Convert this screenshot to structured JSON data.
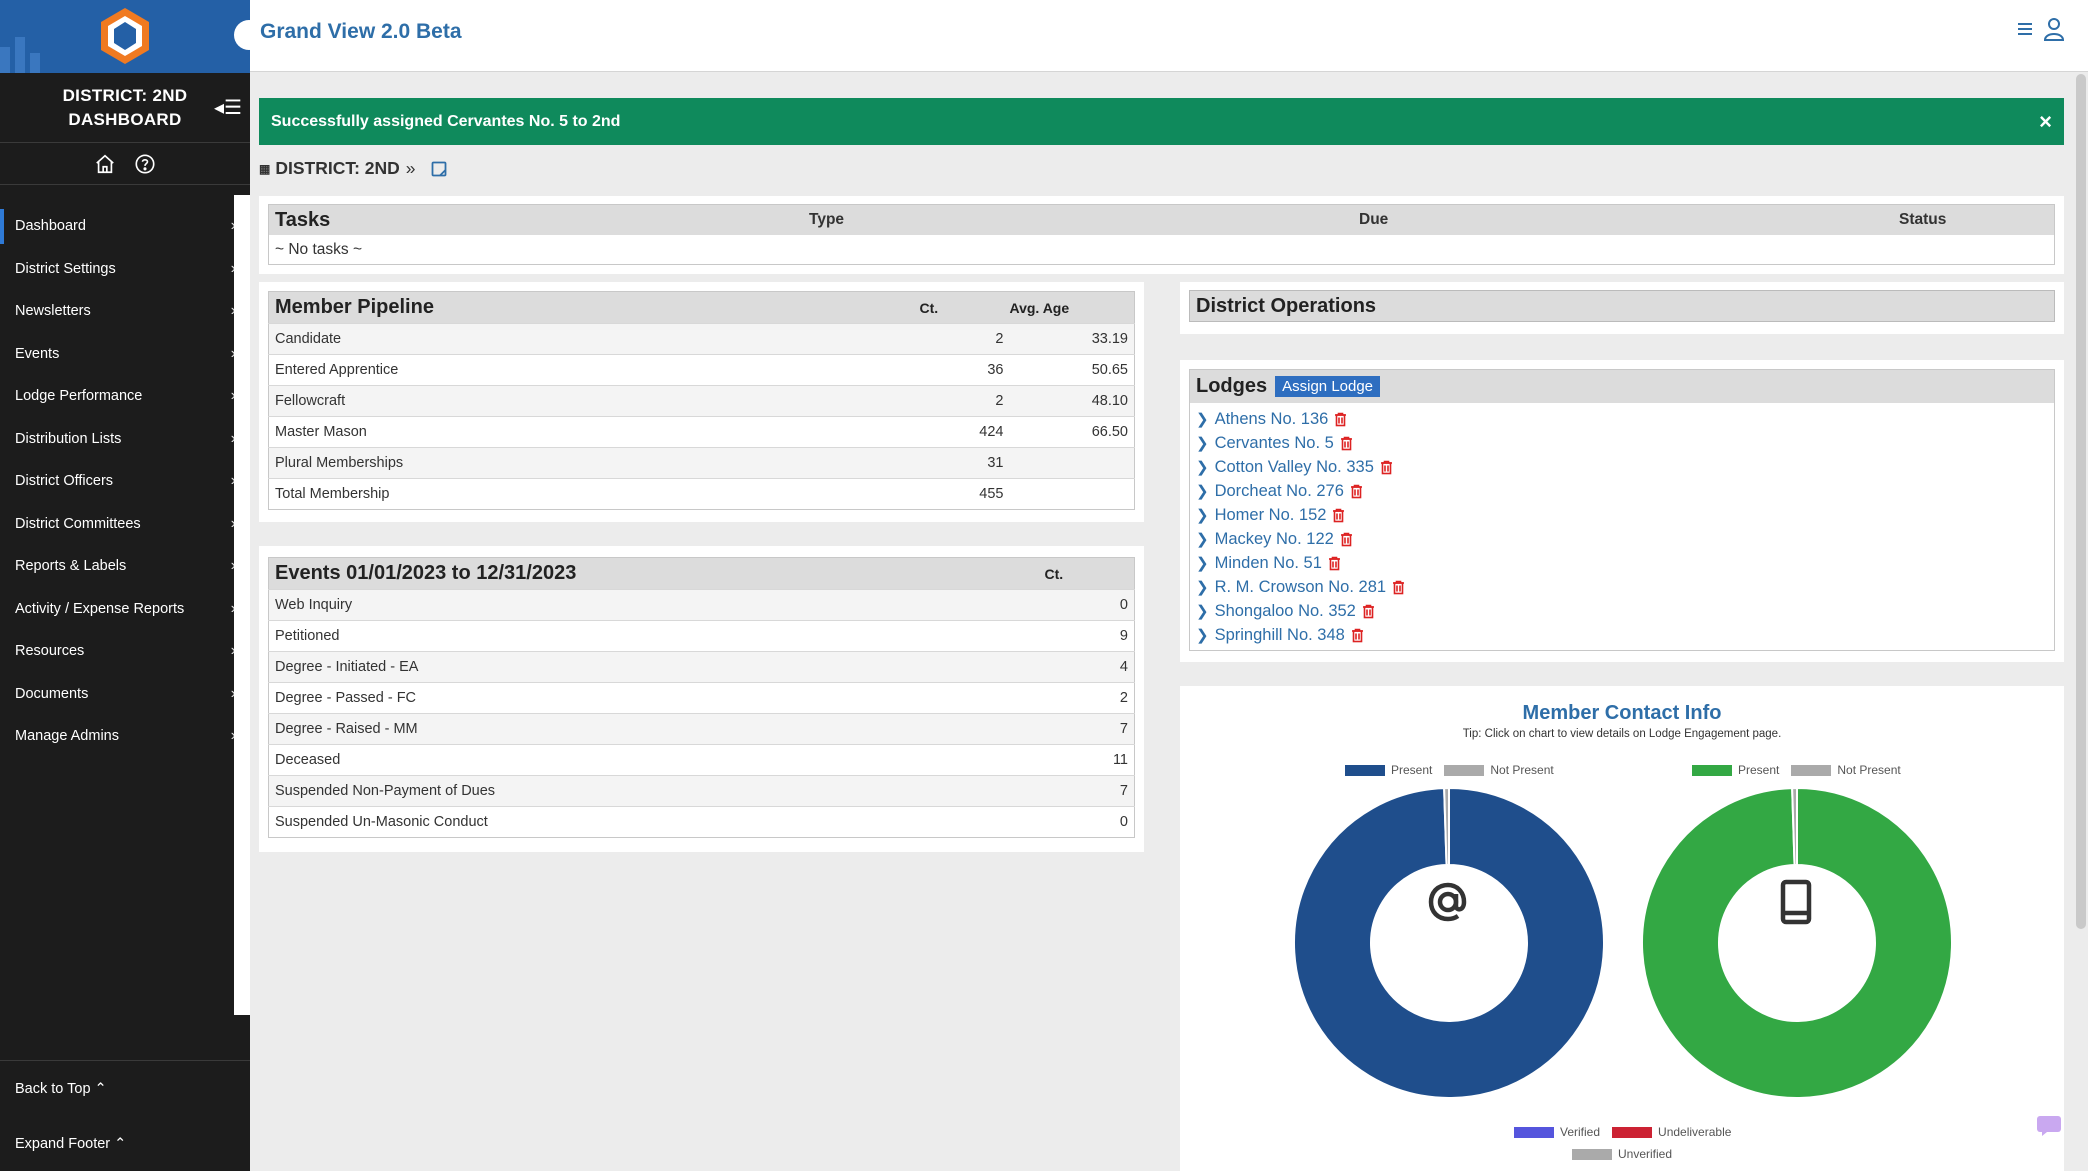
{
  "app": {
    "title": "Grand View 2.0 Beta"
  },
  "sidebar": {
    "title_line1": "DISTRICT: 2ND",
    "title_line2": "DASHBOARD",
    "items": [
      {
        "label": "Dashboard"
      },
      {
        "label": "District Settings"
      },
      {
        "label": "Newsletters"
      },
      {
        "label": "Events"
      },
      {
        "label": "Lodge Performance"
      },
      {
        "label": "Distribution Lists"
      },
      {
        "label": "District Officers"
      },
      {
        "label": "District Committees"
      },
      {
        "label": "Reports & Labels"
      },
      {
        "label": "Activity / Expense Reports"
      },
      {
        "label": "Resources"
      },
      {
        "label": "Documents"
      },
      {
        "label": "Manage Admins"
      }
    ],
    "back_to_top": "Back to Top",
    "expand_footer": "Expand Footer"
  },
  "alert": {
    "message": "Successfully assigned Cervantes No. 5 to 2nd",
    "close": "×"
  },
  "breadcrumb": {
    "label": "DISTRICT: 2ND"
  },
  "tasks": {
    "title": "Tasks",
    "col_type": "Type",
    "col_due": "Due",
    "col_status": "Status",
    "empty": "~ No tasks ~"
  },
  "pipeline": {
    "title": "Member Pipeline",
    "col_ct": "Ct.",
    "col_age": "Avg. Age",
    "rows": [
      {
        "label": "Candidate",
        "ct": "2",
        "age": "33.19"
      },
      {
        "label": "Entered Apprentice",
        "ct": "36",
        "age": "50.65"
      },
      {
        "label": "Fellowcraft",
        "ct": "2",
        "age": "48.10"
      },
      {
        "label": "Master Mason",
        "ct": "424",
        "age": "66.50"
      },
      {
        "label": "Plural Memberships",
        "ct": "31",
        "age": ""
      },
      {
        "label": "Total Membership",
        "ct": "455",
        "age": ""
      }
    ]
  },
  "events": {
    "title": "Events 01/01/2023 to 12/31/2023",
    "col_ct": "Ct.",
    "rows": [
      {
        "label": "Web Inquiry",
        "ct": "0"
      },
      {
        "label": "Petitioned",
        "ct": "9"
      },
      {
        "label": "Degree - Initiated - EA",
        "ct": "4"
      },
      {
        "label": "Degree - Passed - FC",
        "ct": "2"
      },
      {
        "label": "Degree - Raised - MM",
        "ct": "7"
      },
      {
        "label": "Deceased",
        "ct": "11"
      },
      {
        "label": "Suspended Non-Payment of Dues",
        "ct": "7"
      },
      {
        "label": "Suspended Un-Masonic Conduct",
        "ct": "0"
      }
    ]
  },
  "operations": {
    "title": "District Operations"
  },
  "lodges": {
    "title": "Lodges",
    "assign_label": "Assign Lodge",
    "items": [
      "Athens No. 136",
      "Cervantes No. 5",
      "Cotton Valley No. 335",
      "Dorcheat No. 276",
      "Homer No. 152",
      "Mackey No. 122",
      "Minden No. 51",
      "R. M. Crowson No. 281",
      "Shongaloo No. 352",
      "Springhill No. 348"
    ]
  },
  "contact": {
    "title": "Member Contact Info",
    "tip": "Tip: Click on chart to view details on Lodge Engagement page.",
    "colors": {
      "email_present": "#1f4e8c",
      "phone_present": "#33a844",
      "not_present": "#aaaaaa",
      "verified": "#5555dd",
      "undeliverable": "#cc2233",
      "unverified": "#aaaaaa"
    },
    "legend_bottom": {
      "verified": "Verified",
      "undeliverable": "Undeliverable",
      "unverified": "Unverified"
    }
  },
  "chart_data": [
    {
      "type": "pie",
      "labels": [
        "Present",
        "Not Present"
      ],
      "values": [
        99.5,
        0.5
      ],
      "icon": "at-sign-icon"
    },
    {
      "type": "pie",
      "labels": [
        "Present",
        "Not Present"
      ],
      "values": [
        99.5,
        0.5
      ],
      "icon": "mobile-phone-icon"
    }
  ]
}
